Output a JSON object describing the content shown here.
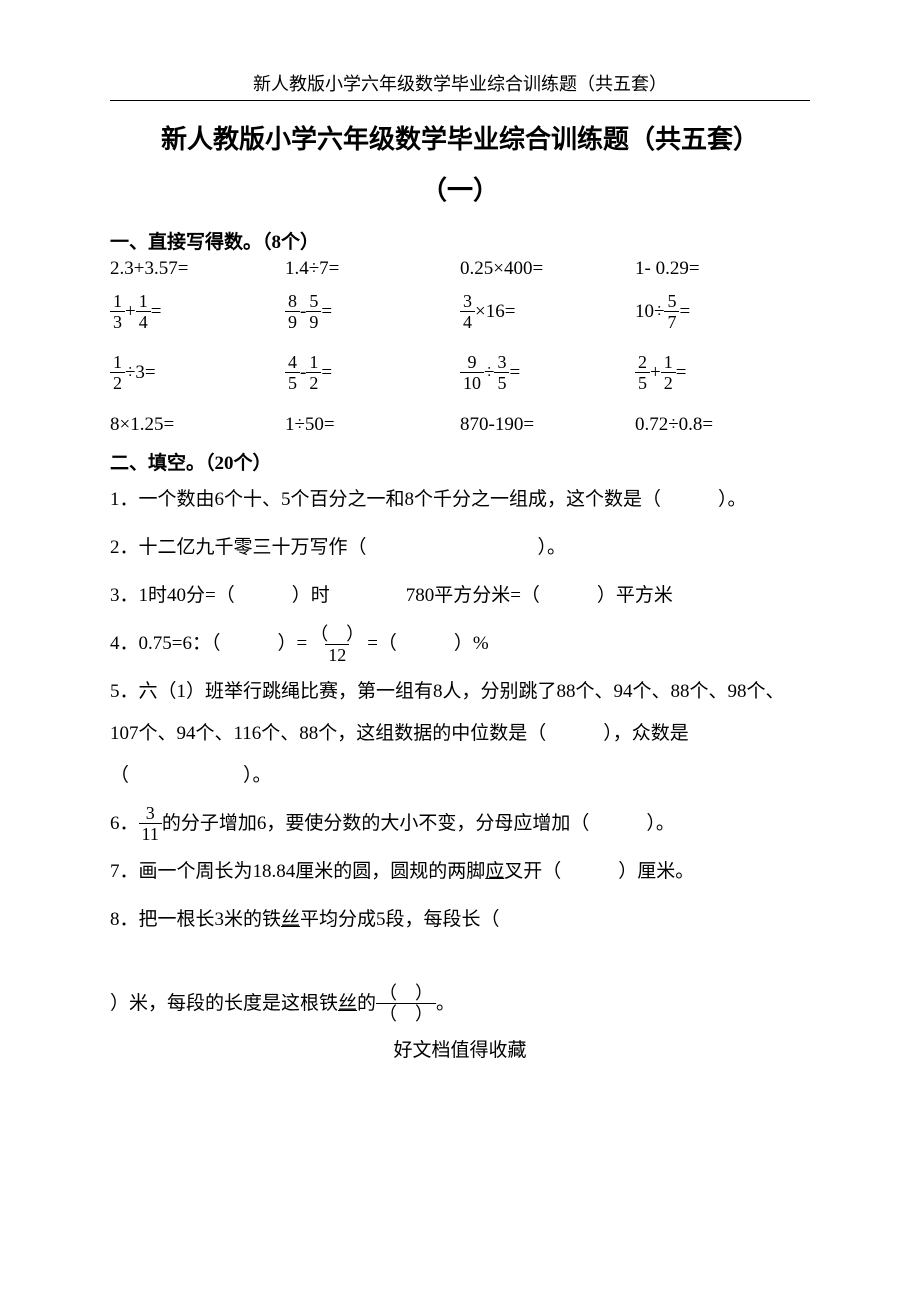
{
  "header": "新人教版小学六年级数学毕业综合训练题（共五套）",
  "title": "新人教版小学六年级数学毕业综合训练题（共五套）",
  "subtitle": "（一）",
  "section1": {
    "head": "一、直接写得数。（8个）",
    "rows": [
      [
        "2.3+3.57=",
        "1.4÷7=",
        "0.25×400=",
        "1- 0.29="
      ],
      [
        {
          "type": "fracexpr",
          "parts": [
            {
              "n": "1",
              "d": "3"
            },
            "+",
            {
              "n": "1",
              "d": "4"
            },
            "="
          ]
        },
        {
          "type": "fracexpr",
          "parts": [
            {
              "n": "8",
              "d": "9"
            },
            "-",
            {
              "n": "5",
              "d": "9"
            },
            "="
          ]
        },
        {
          "type": "fracexpr",
          "parts": [
            {
              "n": "3",
              "d": "4"
            },
            "×16="
          ]
        },
        {
          "type": "fracexpr",
          "parts": [
            "10÷",
            {
              "n": "5",
              "d": "7"
            },
            "="
          ]
        }
      ],
      [
        {
          "type": "fracexpr",
          "parts": [
            {
              "n": "1",
              "d": "2"
            },
            "÷3="
          ]
        },
        {
          "type": "fracexpr",
          "parts": [
            {
              "n": "4",
              "d": "5"
            },
            "-",
            {
              "n": "1",
              "d": "2"
            },
            "="
          ]
        },
        {
          "type": "fracexpr",
          "parts": [
            {
              "n": "9",
              "d": "10"
            },
            "÷",
            {
              "n": "3",
              "d": "5"
            },
            "="
          ]
        },
        {
          "type": "fracexpr",
          "parts": [
            {
              "n": "2",
              "d": "5"
            },
            "+",
            {
              "n": "1",
              "d": "2"
            },
            "="
          ]
        }
      ],
      [
        "8×1.25=",
        "1÷50=",
        "870-190=",
        "0.72÷0.8="
      ]
    ]
  },
  "section2": {
    "head": "二、填空。（20个）",
    "q1": "1．一个数由6个十、5个百分之一和8个千分之一组成，这个数是（　　　）。",
    "q2": "2．十二亿九千零三十万写作（　　　　　　　　　）。",
    "q3": "3．1时40分=（　　　）时　　　　780平方分米=（　　　）平方米",
    "q4_pre": "4．0.75=6：（　　　）=",
    "q4_fracNum": "（　）",
    "q4_fracDen": "12",
    "q4_post": "=（　　　）%",
    "q5": "5．六（1）班举行跳绳比赛，第一组有8人，分别跳了88个、94个、88个、98个、107个、94个、116个、88个，这组数据的中位数是（　　　），众数是（　　　　　　）。",
    "q6_pre": "6．",
    "q6_fracNum": "3",
    "q6_fracDen": "11",
    "q6_post": "的分子增加6，要使分数的大小不变，分母应增加（　　　）。",
    "q7a": "7．画一个周长为18.84厘米的圆，圆规的两脚",
    "q7u": "应",
    "q7b": "叉开（　　　）厘米。",
    "q8a": "8．把一根长3米的铁",
    "q8u": "丝",
    "q8b": "平均分成5段，每段长（",
    "q8c": "）米，每段的长度是这根铁",
    "q8u2": "丝",
    "q8d": "的",
    "q8_fracNum": "（　）",
    "q8_fracDen": "（　）",
    "q8e": "。"
  },
  "footer": "好文档值得收藏"
}
